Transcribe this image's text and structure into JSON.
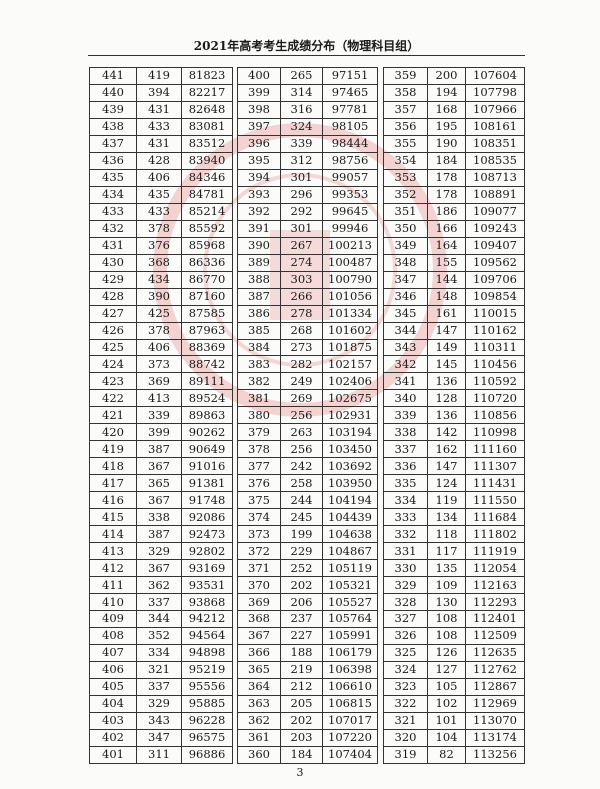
{
  "header": {
    "title": "2021年高考考生成绩分布（物理科目组）"
  },
  "footer": {
    "page_number": "3"
  },
  "watermark": {
    "color": "#e8a0a0",
    "text": "www.eeafj.cn"
  },
  "tables": [
    {
      "rows": [
        [
          "441",
          "419",
          "81823"
        ],
        [
          "440",
          "394",
          "82217"
        ],
        [
          "439",
          "431",
          "82648"
        ],
        [
          "438",
          "433",
          "83081"
        ],
        [
          "437",
          "431",
          "83512"
        ],
        [
          "436",
          "428",
          "83940"
        ],
        [
          "435",
          "406",
          "84346"
        ],
        [
          "434",
          "435",
          "84781"
        ],
        [
          "433",
          "433",
          "85214"
        ],
        [
          "432",
          "378",
          "85592"
        ],
        [
          "431",
          "376",
          "85968"
        ],
        [
          "430",
          "368",
          "86336"
        ],
        [
          "429",
          "434",
          "86770"
        ],
        [
          "428",
          "390",
          "87160"
        ],
        [
          "427",
          "425",
          "87585"
        ],
        [
          "426",
          "378",
          "87963"
        ],
        [
          "425",
          "406",
          "88369"
        ],
        [
          "424",
          "373",
          "88742"
        ],
        [
          "423",
          "369",
          "89111"
        ],
        [
          "422",
          "413",
          "89524"
        ],
        [
          "421",
          "339",
          "89863"
        ],
        [
          "420",
          "399",
          "90262"
        ],
        [
          "419",
          "387",
          "90649"
        ],
        [
          "418",
          "367",
          "91016"
        ],
        [
          "417",
          "365",
          "91381"
        ],
        [
          "416",
          "367",
          "91748"
        ],
        [
          "415",
          "338",
          "92086"
        ],
        [
          "414",
          "387",
          "92473"
        ],
        [
          "413",
          "329",
          "92802"
        ],
        [
          "412",
          "367",
          "93169"
        ],
        [
          "411",
          "362",
          "93531"
        ],
        [
          "410",
          "337",
          "93868"
        ],
        [
          "409",
          "344",
          "94212"
        ],
        [
          "408",
          "352",
          "94564"
        ],
        [
          "407",
          "334",
          "94898"
        ],
        [
          "406",
          "321",
          "95219"
        ],
        [
          "405",
          "337",
          "95556"
        ],
        [
          "404",
          "329",
          "95885"
        ],
        [
          "403",
          "343",
          "96228"
        ],
        [
          "402",
          "347",
          "96575"
        ],
        [
          "401",
          "311",
          "96886"
        ]
      ]
    },
    {
      "rows": [
        [
          "400",
          "265",
          "97151"
        ],
        [
          "399",
          "314",
          "97465"
        ],
        [
          "398",
          "316",
          "97781"
        ],
        [
          "397",
          "324",
          "98105"
        ],
        [
          "396",
          "339",
          "98444"
        ],
        [
          "395",
          "312",
          "98756"
        ],
        [
          "394",
          "301",
          "99057"
        ],
        [
          "393",
          "296",
          "99353"
        ],
        [
          "392",
          "292",
          "99645"
        ],
        [
          "391",
          "301",
          "99946"
        ],
        [
          "390",
          "267",
          "100213"
        ],
        [
          "389",
          "274",
          "100487"
        ],
        [
          "388",
          "303",
          "100790"
        ],
        [
          "387",
          "266",
          "101056"
        ],
        [
          "386",
          "278",
          "101334"
        ],
        [
          "385",
          "268",
          "101602"
        ],
        [
          "384",
          "273",
          "101875"
        ],
        [
          "383",
          "282",
          "102157"
        ],
        [
          "382",
          "249",
          "102406"
        ],
        [
          "381",
          "269",
          "102675"
        ],
        [
          "380",
          "256",
          "102931"
        ],
        [
          "379",
          "263",
          "103194"
        ],
        [
          "378",
          "256",
          "103450"
        ],
        [
          "377",
          "242",
          "103692"
        ],
        [
          "376",
          "258",
          "103950"
        ],
        [
          "375",
          "244",
          "104194"
        ],
        [
          "374",
          "245",
          "104439"
        ],
        [
          "373",
          "199",
          "104638"
        ],
        [
          "372",
          "229",
          "104867"
        ],
        [
          "371",
          "252",
          "105119"
        ],
        [
          "370",
          "202",
          "105321"
        ],
        [
          "369",
          "206",
          "105527"
        ],
        [
          "368",
          "237",
          "105764"
        ],
        [
          "367",
          "227",
          "105991"
        ],
        [
          "366",
          "188",
          "106179"
        ],
        [
          "365",
          "219",
          "106398"
        ],
        [
          "364",
          "212",
          "106610"
        ],
        [
          "363",
          "205",
          "106815"
        ],
        [
          "362",
          "202",
          "107017"
        ],
        [
          "361",
          "203",
          "107220"
        ],
        [
          "360",
          "184",
          "107404"
        ]
      ]
    },
    {
      "rows": [
        [
          "359",
          "200",
          "107604"
        ],
        [
          "358",
          "194",
          "107798"
        ],
        [
          "357",
          "168",
          "107966"
        ],
        [
          "356",
          "195",
          "108161"
        ],
        [
          "355",
          "190",
          "108351"
        ],
        [
          "354",
          "184",
          "108535"
        ],
        [
          "353",
          "178",
          "108713"
        ],
        [
          "352",
          "178",
          "108891"
        ],
        [
          "351",
          "186",
          "109077"
        ],
        [
          "350",
          "166",
          "109243"
        ],
        [
          "349",
          "164",
          "109407"
        ],
        [
          "348",
          "155",
          "109562"
        ],
        [
          "347",
          "144",
          "109706"
        ],
        [
          "346",
          "148",
          "109854"
        ],
        [
          "345",
          "161",
          "110015"
        ],
        [
          "344",
          "147",
          "110162"
        ],
        [
          "343",
          "149",
          "110311"
        ],
        [
          "342",
          "145",
          "110456"
        ],
        [
          "341",
          "136",
          "110592"
        ],
        [
          "340",
          "128",
          "110720"
        ],
        [
          "339",
          "136",
          "110856"
        ],
        [
          "338",
          "142",
          "110998"
        ],
        [
          "337",
          "162",
          "111160"
        ],
        [
          "336",
          "147",
          "111307"
        ],
        [
          "335",
          "124",
          "111431"
        ],
        [
          "334",
          "119",
          "111550"
        ],
        [
          "333",
          "134",
          "111684"
        ],
        [
          "332",
          "118",
          "111802"
        ],
        [
          "331",
          "117",
          "111919"
        ],
        [
          "330",
          "135",
          "112054"
        ],
        [
          "329",
          "109",
          "112163"
        ],
        [
          "328",
          "130",
          "112293"
        ],
        [
          "327",
          "108",
          "112401"
        ],
        [
          "326",
          "108",
          "112509"
        ],
        [
          "325",
          "126",
          "112635"
        ],
        [
          "324",
          "127",
          "112762"
        ],
        [
          "323",
          "105",
          "112867"
        ],
        [
          "322",
          "102",
          "112969"
        ],
        [
          "321",
          "101",
          "113070"
        ],
        [
          "320",
          "104",
          "113174"
        ],
        [
          "319",
          "82",
          "113256"
        ]
      ]
    }
  ]
}
